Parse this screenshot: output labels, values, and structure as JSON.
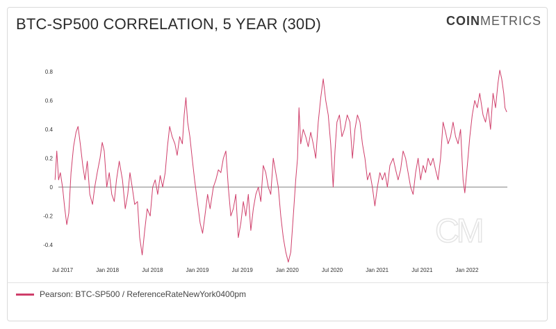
{
  "header": {
    "title": "BTC-SP500 CORRELATION, 5 YEAR (30D)",
    "brand_bold": "COIN",
    "brand_light": "METRICS"
  },
  "watermark": "CM",
  "legend": {
    "label": "Pearson: BTC-SP500 / ReferenceRateNewYork0400pm"
  },
  "colors": {
    "series": "#cf3e6a",
    "zero_line": "#555555",
    "text": "#333333"
  },
  "chart_data": {
    "type": "line",
    "title": "BTC-SP500 CORRELATION, 5 YEAR (30D)",
    "xlabel": "",
    "ylabel": "",
    "x_ticks": [
      "Jul 2017",
      "Jan 2018",
      "Jul 2018",
      "Jan 2019",
      "Jul 2019",
      "Jan 2020",
      "Jul 2020",
      "Jan 2021",
      "Jul 2021",
      "Jan 2022"
    ],
    "y_ticks": [
      "0.8",
      "0.6",
      "0.4",
      "0.2",
      "0",
      "-0.2",
      "-0.4"
    ],
    "ylim": [
      -0.5,
      0.8
    ],
    "xlim": [
      "2017-06",
      "2022-07"
    ],
    "grid": false,
    "legend_position": "bottom-left",
    "series": [
      {
        "name": "Pearson: BTC-SP500 / ReferenceRateNewYork0400pm",
        "points": [
          [
            "2017-06-01",
            0.05
          ],
          [
            "2017-06-08",
            0.25
          ],
          [
            "2017-06-15",
            0.05
          ],
          [
            "2017-06-22",
            0.1
          ],
          [
            "2017-07-01",
            0.0
          ],
          [
            "2017-07-10",
            -0.15
          ],
          [
            "2017-07-18",
            -0.26
          ],
          [
            "2017-07-26",
            -0.18
          ],
          [
            "2017-08-05",
            0.1
          ],
          [
            "2017-08-15",
            0.28
          ],
          [
            "2017-08-25",
            0.38
          ],
          [
            "2017-09-03",
            0.42
          ],
          [
            "2017-09-12",
            0.3
          ],
          [
            "2017-09-22",
            0.15
          ],
          [
            "2017-10-01",
            0.05
          ],
          [
            "2017-10-10",
            0.18
          ],
          [
            "2017-10-20",
            -0.05
          ],
          [
            "2017-11-01",
            -0.12
          ],
          [
            "2017-11-10",
            0.0
          ],
          [
            "2017-11-20",
            0.1
          ],
          [
            "2017-12-01",
            0.2
          ],
          [
            "2017-12-10",
            0.31
          ],
          [
            "2017-12-18",
            0.25
          ],
          [
            "2017-12-28",
            0.0
          ],
          [
            "2018-01-08",
            0.1
          ],
          [
            "2018-01-18",
            -0.05
          ],
          [
            "2018-01-28",
            -0.1
          ],
          [
            "2018-02-07",
            0.05
          ],
          [
            "2018-02-18",
            0.18
          ],
          [
            "2018-03-01",
            0.05
          ],
          [
            "2018-03-12",
            -0.15
          ],
          [
            "2018-03-22",
            -0.05
          ],
          [
            "2018-04-01",
            0.1
          ],
          [
            "2018-04-10",
            0.0
          ],
          [
            "2018-04-20",
            -0.12
          ],
          [
            "2018-05-01",
            -0.1
          ],
          [
            "2018-05-10",
            -0.35
          ],
          [
            "2018-05-20",
            -0.47
          ],
          [
            "2018-05-30",
            -0.3
          ],
          [
            "2018-06-10",
            -0.15
          ],
          [
            "2018-06-22",
            -0.2
          ],
          [
            "2018-07-02",
            0.0
          ],
          [
            "2018-07-12",
            0.05
          ],
          [
            "2018-07-22",
            -0.05
          ],
          [
            "2018-08-02",
            0.08
          ],
          [
            "2018-08-12",
            0.0
          ],
          [
            "2018-08-22",
            0.1
          ],
          [
            "2018-09-01",
            0.28
          ],
          [
            "2018-09-10",
            0.42
          ],
          [
            "2018-09-20",
            0.35
          ],
          [
            "2018-10-01",
            0.3
          ],
          [
            "2018-10-10",
            0.22
          ],
          [
            "2018-10-20",
            0.35
          ],
          [
            "2018-11-01",
            0.3
          ],
          [
            "2018-11-08",
            0.5
          ],
          [
            "2018-11-15",
            0.62
          ],
          [
            "2018-11-22",
            0.45
          ],
          [
            "2018-12-01",
            0.35
          ],
          [
            "2018-12-10",
            0.2
          ],
          [
            "2018-12-20",
            0.05
          ],
          [
            "2019-01-01",
            -0.1
          ],
          [
            "2019-01-12",
            -0.25
          ],
          [
            "2019-01-22",
            -0.32
          ],
          [
            "2019-02-01",
            -0.2
          ],
          [
            "2019-02-12",
            -0.05
          ],
          [
            "2019-02-22",
            -0.15
          ],
          [
            "2019-03-05",
            0.0
          ],
          [
            "2019-03-15",
            0.05
          ],
          [
            "2019-03-25",
            0.12
          ],
          [
            "2019-04-05",
            0.1
          ],
          [
            "2019-04-15",
            0.2
          ],
          [
            "2019-04-25",
            0.25
          ],
          [
            "2019-05-05",
            0.0
          ],
          [
            "2019-05-15",
            -0.2
          ],
          [
            "2019-05-25",
            -0.15
          ],
          [
            "2019-06-05",
            -0.05
          ],
          [
            "2019-06-15",
            -0.35
          ],
          [
            "2019-06-25",
            -0.25
          ],
          [
            "2019-07-05",
            -0.1
          ],
          [
            "2019-07-15",
            -0.2
          ],
          [
            "2019-07-25",
            -0.05
          ],
          [
            "2019-08-05",
            -0.3
          ],
          [
            "2019-08-15",
            -0.15
          ],
          [
            "2019-08-25",
            -0.05
          ],
          [
            "2019-09-05",
            0.0
          ],
          [
            "2019-09-15",
            -0.1
          ],
          [
            "2019-09-25",
            0.15
          ],
          [
            "2019-10-05",
            0.1
          ],
          [
            "2019-10-15",
            0.0
          ],
          [
            "2019-10-25",
            -0.05
          ],
          [
            "2019-11-05",
            0.2
          ],
          [
            "2019-11-15",
            0.1
          ],
          [
            "2019-11-25",
            0.0
          ],
          [
            "2019-12-05",
            -0.2
          ],
          [
            "2019-12-15",
            -0.35
          ],
          [
            "2019-12-25",
            -0.45
          ],
          [
            "2020-01-05",
            -0.52
          ],
          [
            "2020-01-15",
            -0.45
          ],
          [
            "2020-01-25",
            -0.2
          ],
          [
            "2020-02-05",
            0.05
          ],
          [
            "2020-02-12",
            0.2
          ],
          [
            "2020-02-18",
            0.55
          ],
          [
            "2020-02-25",
            0.3
          ],
          [
            "2020-03-05",
            0.4
          ],
          [
            "2020-03-15",
            0.35
          ],
          [
            "2020-03-25",
            0.28
          ],
          [
            "2020-04-05",
            0.38
          ],
          [
            "2020-04-15",
            0.3
          ],
          [
            "2020-04-25",
            0.2
          ],
          [
            "2020-05-05",
            0.45
          ],
          [
            "2020-05-15",
            0.62
          ],
          [
            "2020-05-25",
            0.75
          ],
          [
            "2020-06-05",
            0.6
          ],
          [
            "2020-06-15",
            0.5
          ],
          [
            "2020-06-25",
            0.3
          ],
          [
            "2020-07-05",
            0.0
          ],
          [
            "2020-07-12",
            0.25
          ],
          [
            "2020-07-20",
            0.45
          ],
          [
            "2020-07-30",
            0.5
          ],
          [
            "2020-08-10",
            0.35
          ],
          [
            "2020-08-20",
            0.4
          ],
          [
            "2020-09-01",
            0.5
          ],
          [
            "2020-09-12",
            0.45
          ],
          [
            "2020-09-22",
            0.2
          ],
          [
            "2020-10-02",
            0.4
          ],
          [
            "2020-10-12",
            0.5
          ],
          [
            "2020-10-22",
            0.45
          ],
          [
            "2020-11-02",
            0.3
          ],
          [
            "2020-11-12",
            0.2
          ],
          [
            "2020-11-22",
            0.05
          ],
          [
            "2020-12-02",
            0.1
          ],
          [
            "2020-12-12",
            0.0
          ],
          [
            "2020-12-22",
            -0.13
          ],
          [
            "2021-01-02",
            0.0
          ],
          [
            "2021-01-12",
            0.1
          ],
          [
            "2021-01-22",
            0.05
          ],
          [
            "2021-02-02",
            0.1
          ],
          [
            "2021-02-12",
            0.0
          ],
          [
            "2021-02-22",
            0.15
          ],
          [
            "2021-03-05",
            0.2
          ],
          [
            "2021-03-15",
            0.12
          ],
          [
            "2021-03-25",
            0.05
          ],
          [
            "2021-04-05",
            0.12
          ],
          [
            "2021-04-15",
            0.25
          ],
          [
            "2021-04-25",
            0.2
          ],
          [
            "2021-05-05",
            0.1
          ],
          [
            "2021-05-15",
            0.0
          ],
          [
            "2021-05-25",
            -0.05
          ],
          [
            "2021-06-05",
            0.1
          ],
          [
            "2021-06-15",
            0.2
          ],
          [
            "2021-06-25",
            0.05
          ],
          [
            "2021-07-05",
            0.15
          ],
          [
            "2021-07-15",
            0.1
          ],
          [
            "2021-07-25",
            0.2
          ],
          [
            "2021-08-05",
            0.15
          ],
          [
            "2021-08-15",
            0.2
          ],
          [
            "2021-08-25",
            0.12
          ],
          [
            "2021-09-05",
            0.05
          ],
          [
            "2021-09-15",
            0.2
          ],
          [
            "2021-09-25",
            0.45
          ],
          [
            "2021-10-05",
            0.38
          ],
          [
            "2021-10-15",
            0.3
          ],
          [
            "2021-10-25",
            0.35
          ],
          [
            "2021-11-05",
            0.45
          ],
          [
            "2021-11-15",
            0.35
          ],
          [
            "2021-11-25",
            0.3
          ],
          [
            "2021-12-05",
            0.4
          ],
          [
            "2021-12-15",
            0.05
          ],
          [
            "2021-12-22",
            -0.04
          ],
          [
            "2022-01-02",
            0.15
          ],
          [
            "2022-01-12",
            0.35
          ],
          [
            "2022-01-22",
            0.5
          ],
          [
            "2022-02-02",
            0.6
          ],
          [
            "2022-02-12",
            0.55
          ],
          [
            "2022-02-22",
            0.65
          ],
          [
            "2022-03-05",
            0.5
          ],
          [
            "2022-03-15",
            0.45
          ],
          [
            "2022-03-25",
            0.55
          ],
          [
            "2022-04-05",
            0.4
          ],
          [
            "2022-04-15",
            0.65
          ],
          [
            "2022-04-25",
            0.55
          ],
          [
            "2022-05-05",
            0.72
          ],
          [
            "2022-05-12",
            0.81
          ],
          [
            "2022-05-20",
            0.75
          ],
          [
            "2022-05-28",
            0.65
          ],
          [
            "2022-06-03",
            0.55
          ],
          [
            "2022-06-10",
            0.52
          ]
        ]
      }
    ]
  }
}
